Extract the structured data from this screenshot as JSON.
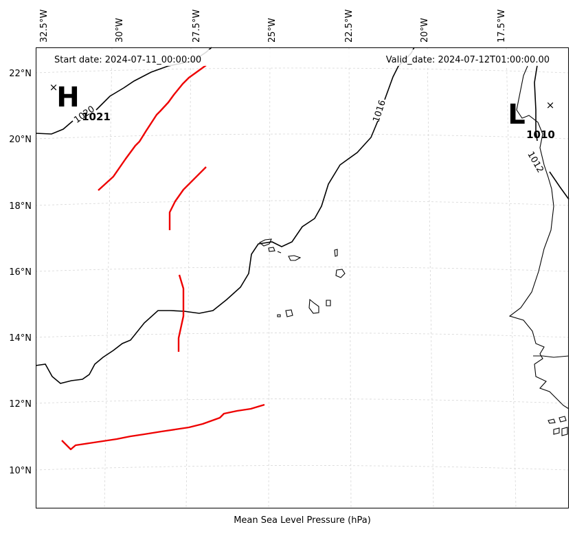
{
  "map": {
    "start_date": "Start date: 2024-07-11_00:00:00",
    "valid_date": "Valid_date: 2024-07-12T01:00:00.00",
    "xlabel": "Mean Sea Level Pressure (hPa)",
    "lon_labels": [
      "32.5°W",
      "30°W",
      "27.5°W",
      "25°W",
      "22.5°W",
      "20°W",
      "17.5°W"
    ],
    "lat_labels": [
      "22°N",
      "20°N",
      "18°N",
      "16°N",
      "14°N",
      "12°N",
      "10°N"
    ],
    "high": {
      "symbol": "H",
      "value": "1021"
    },
    "low": {
      "symbol": "L",
      "value": "1010"
    },
    "contour_labels": [
      "1020",
      "1016",
      "1012"
    ],
    "colors": {
      "isobar": "#000000",
      "front": "#ee0000",
      "grid": "#cccccc",
      "coast": "#000000"
    }
  }
}
